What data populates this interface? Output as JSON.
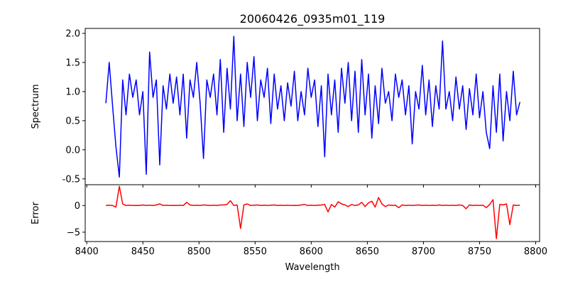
{
  "chart_data": [
    {
      "type": "line",
      "title": "20060426_0935m01_119",
      "xlabel": "",
      "ylabel": "Spectrum",
      "xlim": [
        8398.6,
        8803.5
      ],
      "ylim": [
        -0.6,
        2.085
      ],
      "xticks": [
        8400,
        8450,
        8500,
        8550,
        8600,
        8650,
        8700,
        8750,
        8800
      ],
      "yticks": [
        "-0.5",
        "0.0",
        "0.5",
        "1.0",
        "1.5",
        "2.0"
      ],
      "color": "#0000ff",
      "x_start": 8417,
      "x_step": 3,
      "y": [
        0.8,
        1.5,
        0.75,
        0.05,
        -0.47,
        1.2,
        0.6,
        1.3,
        0.9,
        1.2,
        0.6,
        1.0,
        -0.42,
        1.68,
        0.9,
        1.2,
        -0.26,
        1.1,
        0.7,
        1.3,
        0.8,
        1.25,
        0.6,
        1.3,
        0.2,
        1.2,
        0.9,
        1.5,
        0.8,
        -0.15,
        1.2,
        0.9,
        1.3,
        0.6,
        1.55,
        0.3,
        1.4,
        0.7,
        1.95,
        0.5,
        1.3,
        0.4,
        1.5,
        0.9,
        1.6,
        0.5,
        1.2,
        0.9,
        1.4,
        0.45,
        1.3,
        0.7,
        1.1,
        0.5,
        1.15,
        0.75,
        1.35,
        0.5,
        1.0,
        0.6,
        1.4,
        0.9,
        1.2,
        0.4,
        1.1,
        -0.12,
        1.3,
        0.6,
        1.2,
        0.3,
        1.4,
        0.8,
        1.5,
        0.5,
        1.35,
        0.3,
        1.55,
        0.6,
        1.3,
        0.2,
        1.1,
        0.45,
        1.4,
        0.8,
        1.0,
        0.5,
        1.3,
        0.9,
        1.2,
        0.6,
        1.1,
        0.1,
        1.0,
        0.7,
        1.45,
        0.6,
        1.2,
        0.4,
        1.1,
        0.7,
        1.87,
        0.7,
        1.0,
        0.5,
        1.25,
        0.7,
        1.1,
        0.35,
        1.05,
        0.6,
        1.3,
        0.55,
        1.0,
        0.3,
        0.02,
        1.1,
        0.3,
        1.3,
        0.15,
        1.0,
        0.5,
        1.35,
        0.6,
        0.82
      ]
    },
    {
      "type": "line",
      "title": "",
      "xlabel": "Wavelength",
      "ylabel": "Error",
      "xlim": [
        8398.6,
        8803.5
      ],
      "ylim": [
        -6.75,
        3.9
      ],
      "xticks": [
        8400,
        8450,
        8500,
        8550,
        8600,
        8650,
        8700,
        8750,
        8800
      ],
      "yticks": [
        "−5",
        "0"
      ],
      "ytick_values": [
        -5,
        0
      ],
      "color": "#ff0000",
      "x_start": 8417,
      "x_step": 3,
      "y": [
        0,
        0.05,
        0,
        -0.3,
        3.6,
        0.3,
        0,
        0.05,
        0,
        0.02,
        0,
        0.1,
        0,
        0.05,
        0,
        0.1,
        0.3,
        0,
        0.05,
        0,
        0.02,
        0,
        0.05,
        0,
        0.6,
        0.1,
        0,
        0.05,
        0,
        0.1,
        0.05,
        0,
        0.05,
        0,
        0.1,
        0.1,
        0.2,
        0.9,
        0,
        0.1,
        -4.3,
        0.1,
        0.3,
        0,
        0.05,
        0.1,
        0,
        0.05,
        0,
        0.05,
        0.1,
        0,
        0.05,
        0,
        0.05,
        0,
        0.02,
        0,
        0.1,
        0.2,
        0,
        0.05,
        0,
        0.05,
        0.1,
        0.2,
        -1.2,
        0.2,
        -0.3,
        0.7,
        0.3,
        0.1,
        -0.2,
        0.2,
        0,
        0.1,
        0.6,
        -0.2,
        0.5,
        0.8,
        -0.3,
        1.5,
        0.3,
        -0.2,
        0.1,
        0,
        0.05,
        -0.4,
        0.1,
        0,
        0.05,
        0,
        0.05,
        0.1,
        0,
        0.05,
        0,
        0.05,
        0,
        0.1,
        0,
        0.05,
        0,
        0.05,
        0,
        0.1,
        0,
        -0.6,
        0.1,
        0,
        0.05,
        0,
        0.05,
        -0.4,
        0.2,
        1.1,
        -6.2,
        0.2,
        0.1,
        0.3,
        -3.6,
        0.1,
        0,
        0.05
      ]
    }
  ]
}
